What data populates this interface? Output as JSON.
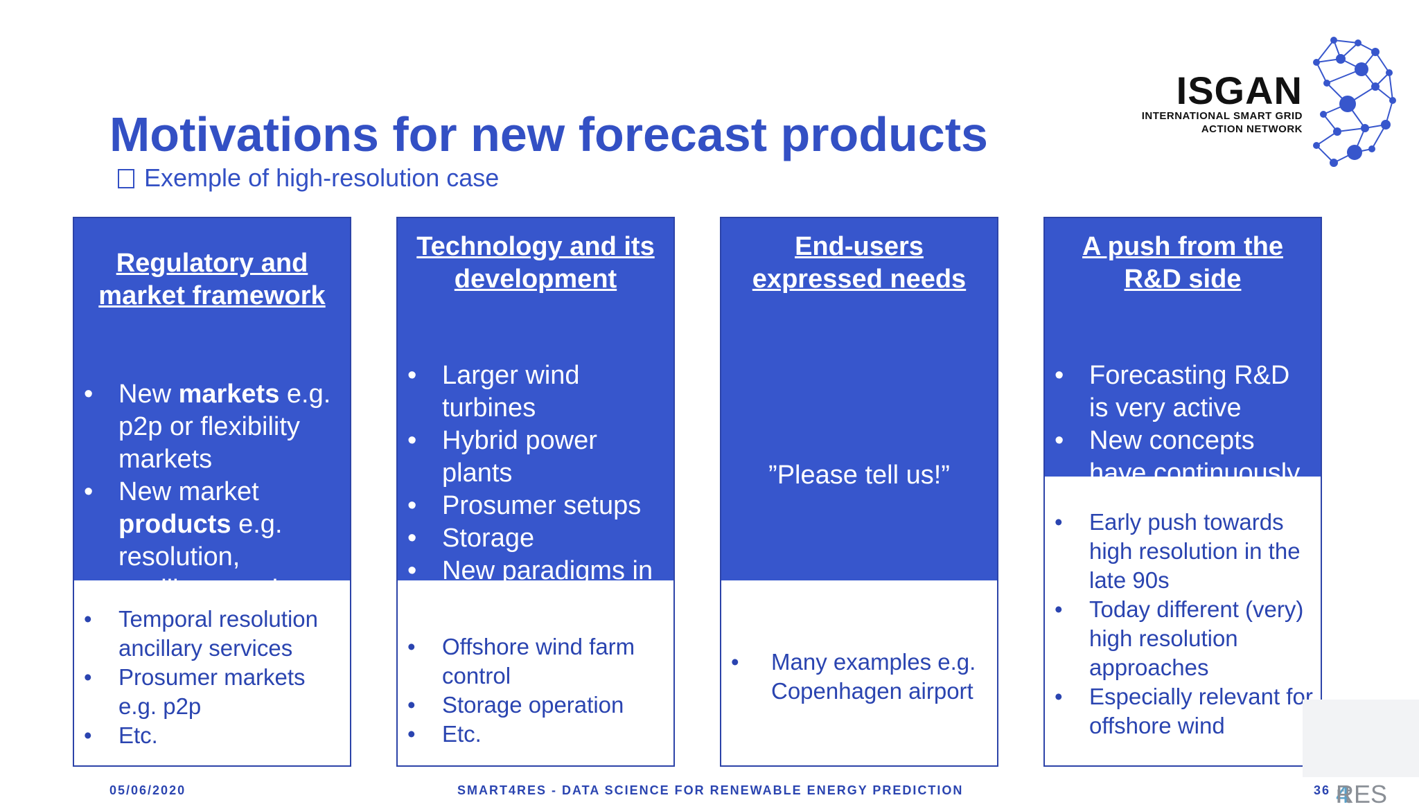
{
  "slide": {
    "title": "Motivations for new forecast products",
    "subtitle": "Exemple of high-resolution case"
  },
  "logo": {
    "word": "ISGAN",
    "tagline_1": "INTERNATIONAL SMART GRID",
    "tagline_2": "ACTION NETWORK"
  },
  "columns": [
    {
      "heading_1": "Regulatory and",
      "heading_2": "market framework",
      "top_items": [
        {
          "pre": "New ",
          "bold": "markets",
          "post": " e.g. p2p or flexibility markets"
        },
        {
          "pre": "New market ",
          "bold": "products",
          "post": " e.g. resolution, ancillary services"
        }
      ],
      "bottom_items": [
        "Temporal resolution ancillary services",
        "Prosumer markets e.g. p2p",
        "Etc."
      ]
    },
    {
      "heading_1": "Technology and its",
      "heading_2": "development",
      "top_items": [
        "Larger wind turbines",
        "Hybrid power plants",
        "Prosumer setups",
        "Storage",
        "New paradigms in"
      ],
      "bottom_items": [
        "Offshore wind farm control",
        "Storage operation",
        "Etc."
      ]
    },
    {
      "heading_1": "End-users",
      "heading_2": "expressed needs",
      "quote": "”Please tell us!”",
      "bottom_items": [
        "Many examples e.g. Copenhagen airport"
      ]
    },
    {
      "heading_1": "A push from the",
      "heading_2": "R&D side",
      "top_items": [
        "Forecasting R&D is very active",
        "New concepts have continuously"
      ],
      "bottom_items": [
        "Early push towards high resolution in the late 90s",
        "Today different (very) high resolution approaches",
        "Especially relevant for offshore wind"
      ]
    }
  ],
  "footer": {
    "date": "05/06/2020",
    "center": "SMART4RES - DATA SCIENCE FOR RENEWABLE ENERGY PREDICTION",
    "page": "36"
  },
  "watermark": {
    "text_a": "rt",
    "text_b": "4",
    "text_c": "RES"
  },
  "colors": {
    "title_blue": "#3350c4",
    "box_blue": "#3756cc",
    "border_blue": "#2c43a8",
    "text_blue": "#2a44b0"
  }
}
